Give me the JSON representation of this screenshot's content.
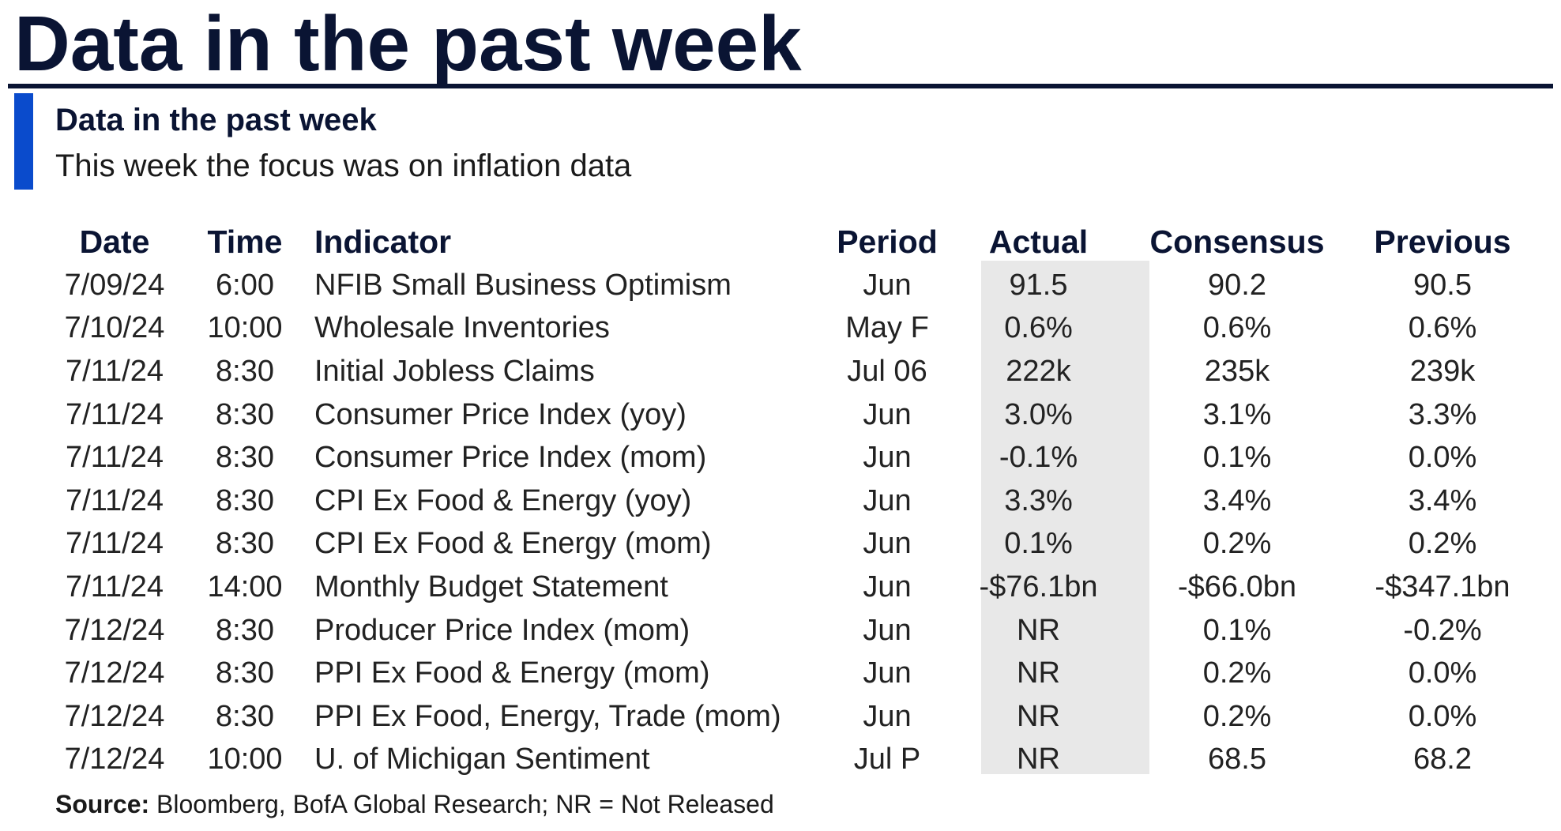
{
  "page_title": "Data in the past week",
  "subtitle": "Data in the past week",
  "subtitle2": "This week the focus was on inflation data",
  "headers": {
    "date": "Date",
    "time": "Time",
    "indicator": "Indicator",
    "period": "Period",
    "actual": "Actual",
    "consensus": "Consensus",
    "previous": "Previous"
  },
  "rows": [
    {
      "date": "7/09/24",
      "time": "6:00",
      "indicator": "NFIB Small Business Optimism",
      "period": "Jun",
      "actual": "91.5",
      "consensus": "90.2",
      "previous": "90.5"
    },
    {
      "date": "7/10/24",
      "time": "10:00",
      "indicator": "Wholesale Inventories",
      "period": "May F",
      "actual": "0.6%",
      "consensus": "0.6%",
      "previous": "0.6%"
    },
    {
      "date": "7/11/24",
      "time": "8:30",
      "indicator": "Initial Jobless Claims",
      "period": "Jul 06",
      "actual": "222k",
      "consensus": "235k",
      "previous": "239k"
    },
    {
      "date": "7/11/24",
      "time": "8:30",
      "indicator": "Consumer Price Index (yoy)",
      "period": "Jun",
      "actual": "3.0%",
      "consensus": "3.1%",
      "previous": "3.3%"
    },
    {
      "date": "7/11/24",
      "time": "8:30",
      "indicator": "Consumer Price Index (mom)",
      "period": "Jun",
      "actual": "-0.1%",
      "consensus": "0.1%",
      "previous": "0.0%"
    },
    {
      "date": "7/11/24",
      "time": "8:30",
      "indicator": "CPI Ex Food & Energy (yoy)",
      "period": "Jun",
      "actual": "3.3%",
      "consensus": "3.4%",
      "previous": "3.4%"
    },
    {
      "date": "7/11/24",
      "time": "8:30",
      "indicator": "CPI Ex Food & Energy (mom)",
      "period": "Jun",
      "actual": "0.1%",
      "consensus": "0.2%",
      "previous": "0.2%"
    },
    {
      "date": "7/11/24",
      "time": "14:00",
      "indicator": "Monthly Budget Statement",
      "period": "Jun",
      "actual": "-$76.1bn",
      "consensus": "-$66.0bn",
      "previous": "-$347.1bn"
    },
    {
      "date": "7/12/24",
      "time": "8:30",
      "indicator": "Producer Price Index (mom)",
      "period": "Jun",
      "actual": "NR",
      "consensus": "0.1%",
      "previous": "-0.2%"
    },
    {
      "date": "7/12/24",
      "time": "8:30",
      "indicator": "PPI Ex Food & Energy (mom)",
      "period": "Jun",
      "actual": "NR",
      "consensus": "0.2%",
      "previous": "0.0%"
    },
    {
      "date": "7/12/24",
      "time": "8:30",
      "indicator": "PPI Ex Food, Energy, Trade (mom)",
      "period": "Jun",
      "actual": "NR",
      "consensus": "0.2%",
      "previous": "0.0%"
    },
    {
      "date": "7/12/24",
      "time": "10:00",
      "indicator": "U. of Michigan Sentiment",
      "period": "Jul P",
      "actual": "NR",
      "consensus": "68.5",
      "previous": "68.2"
    }
  ],
  "source": {
    "label": "Source:",
    "text": " Bloomberg, BofA Global Research; NR = Not Released"
  },
  "colors": {
    "title": "#0a1433",
    "accent": "#0a4bcc",
    "actual_highlight": "#e8e8e8"
  }
}
